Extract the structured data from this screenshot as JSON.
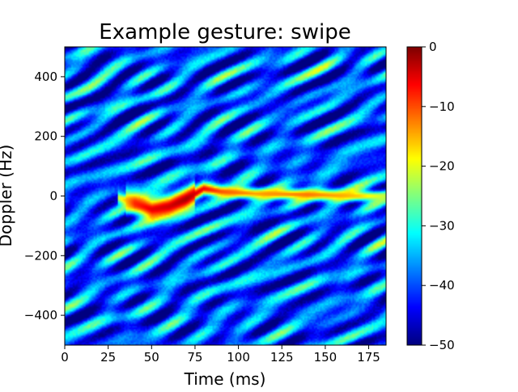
{
  "chart_data": {
    "type": "heatmap",
    "title": "Example gesture: swipe",
    "xlabel": "Time (ms)",
    "ylabel": "Doppler (Hz)",
    "xlim": [
      0,
      185
    ],
    "ylim": [
      -500,
      500
    ],
    "x_ticks": [
      0,
      25,
      50,
      75,
      100,
      125,
      150,
      175
    ],
    "x_tick_labels": [
      "0",
      "25",
      "50",
      "75",
      "100",
      "125",
      "150",
      "175"
    ],
    "y_ticks": [
      400,
      200,
      0,
      -200,
      -400
    ],
    "y_tick_labels": [
      "400",
      "200",
      "0",
      "−200",
      "−400"
    ],
    "colorbar": {
      "colormap": "jet",
      "range": [
        -50,
        0
      ],
      "ticks": [
        0,
        -10,
        -20,
        -30,
        -40,
        -50
      ],
      "tick_labels": [
        "0",
        "−10",
        "−20",
        "−30",
        "−40",
        "−50"
      ]
    },
    "background_level_db": -40,
    "gesture_trace": [
      {
        "time_ms": 30,
        "doppler_hz": -5,
        "level_db": -22
      },
      {
        "time_ms": 40,
        "doppler_hz": -25,
        "level_db": -8
      },
      {
        "time_ms": 50,
        "doppler_hz": -45,
        "level_db": -5
      },
      {
        "time_ms": 60,
        "doppler_hz": -35,
        "level_db": -4
      },
      {
        "time_ms": 70,
        "doppler_hz": -10,
        "level_db": -2
      },
      {
        "time_ms": 80,
        "doppler_hz": 25,
        "level_db": -6
      },
      {
        "time_ms": 90,
        "doppler_hz": 15,
        "level_db": -10
      },
      {
        "time_ms": 110,
        "doppler_hz": 8,
        "level_db": -14
      },
      {
        "time_ms": 140,
        "doppler_hz": 5,
        "level_db": -12
      },
      {
        "time_ms": 170,
        "doppler_hz": 0,
        "level_db": -16
      },
      {
        "time_ms": 185,
        "doppler_hz": 0,
        "level_db": -22
      }
    ]
  }
}
